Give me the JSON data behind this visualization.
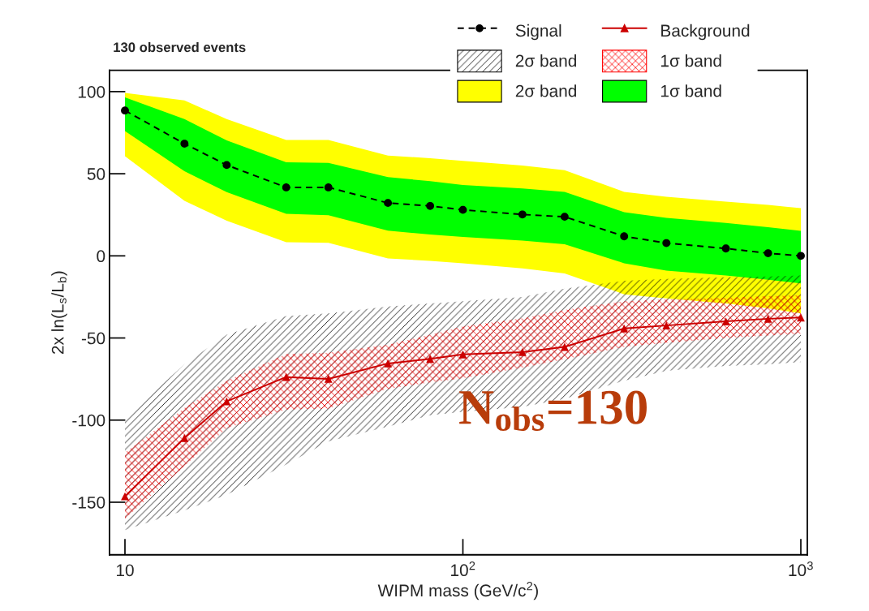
{
  "chart_data": {
    "type": "line",
    "title": "130 observed events",
    "xlabel": "WIPM mass (GeV/c$^{2}$)",
    "ylabel": "2x ln(L$_{s}$/L$_{b}$)",
    "x": [
      10,
      15,
      20,
      30,
      40,
      60,
      80,
      100,
      150,
      200,
      300,
      400,
      600,
      800,
      1000
    ],
    "series": [
      {
        "name": "2σ band",
        "color": "#ffff00",
        "values": [
          null,
          null,
          null,
          null,
          null,
          null,
          null,
          null,
          null,
          null,
          null,
          null,
          null,
          null,
          null
        ],
        "lower": [
          60.7,
          33.5,
          21.4,
          8.3,
          7.9,
          -1.6,
          -3,
          -4.5,
          -7.6,
          -10.7,
          -23.4,
          -25.9,
          -29,
          -32,
          -35
        ],
        "upper": [
          99.2,
          94.6,
          83.3,
          70.6,
          70.6,
          61,
          59.5,
          57.9,
          55,
          52.1,
          39,
          36,
          33,
          31,
          29
        ]
      },
      {
        "name": "1σ band",
        "color": "#00ff00",
        "values": [
          null,
          null,
          null,
          null,
          null,
          null,
          null,
          null,
          null,
          null,
          null,
          null,
          null,
          null,
          null
        ],
        "lower": [
          76,
          51.6,
          38.8,
          25.6,
          24.8,
          15.3,
          13,
          11.5,
          9.3,
          7.1,
          -4.5,
          -9,
          -12,
          -14.5,
          -16.8
        ],
        "upper": [
          96.5,
          83.3,
          70.3,
          57,
          56.6,
          47.9,
          45.5,
          43.1,
          41,
          39,
          26.6,
          23.1,
          20,
          17.5,
          15.2
        ]
      },
      {
        "name": "2σ band",
        "color": "#000000",
        "values": [
          null,
          null,
          null,
          null,
          null,
          null,
          null,
          null,
          null,
          null,
          null,
          null,
          null,
          null,
          null
        ],
        "lower": [
          -167,
          -155,
          -145.5,
          -127,
          -113,
          -104,
          -97,
          -95,
          -92,
          -87,
          -76,
          -70,
          -67,
          -66,
          -64.7
        ],
        "upper": [
          -98.5,
          -66,
          -48,
          -36.6,
          -35,
          -30.8,
          -29,
          -27.6,
          -25,
          -20,
          -15.2,
          -14,
          -13,
          -12.5,
          -11.9
        ]
      },
      {
        "name": "1σ band",
        "color": "#ff0000",
        "values": [
          null,
          null,
          null,
          null,
          null,
          null,
          null,
          null,
          null,
          null,
          null,
          null,
          null,
          null,
          null
        ],
        "lower": [
          -160,
          -128,
          -105,
          -93.6,
          -93,
          -81,
          -77,
          -74.6,
          -68,
          -63,
          -55.4,
          -53,
          -50,
          -48.5,
          -47.4
        ],
        "upper": [
          -119.8,
          -92.6,
          -76,
          -59.7,
          -59,
          -54,
          -48,
          -43,
          -38,
          -33,
          -27.6,
          -26.5,
          -25.5,
          -24.5,
          -24
        ]
      },
      {
        "name": "Signal",
        "color": "#000000",
        "marker": "circle",
        "line_style": "dashed",
        "values": [
          88.5,
          68.3,
          55.3,
          41.7,
          41.7,
          32.2,
          30.4,
          28,
          25.2,
          23.8,
          11.9,
          7.8,
          4.5,
          1.6,
          0
        ]
      },
      {
        "name": "Background",
        "color": "#cc0000",
        "marker": "triangle",
        "line_style": "solid",
        "values": [
          -146.4,
          -110.9,
          -88.6,
          -73.8,
          -74.9,
          -65.5,
          -62.7,
          -60,
          -58.6,
          -55.4,
          -44.2,
          -42.4,
          -39.9,
          -38.3,
          -37.5
        ]
      }
    ],
    "log": "x",
    "xlim": [
      9,
      1045
    ],
    "xticks": [
      10,
      {
        "value": 100,
        "label": "10$^{2}$"
      },
      {
        "value": 1000,
        "label": "10$^{3}$"
      }
    ],
    "ylim": [
      -182,
      113
    ],
    "yticks": [
      -150,
      -100,
      -50,
      0,
      50,
      100
    ],
    "grid": false,
    "legend": "top right",
    "annotations": [
      "N$_{obs}$=130"
    ]
  }
}
